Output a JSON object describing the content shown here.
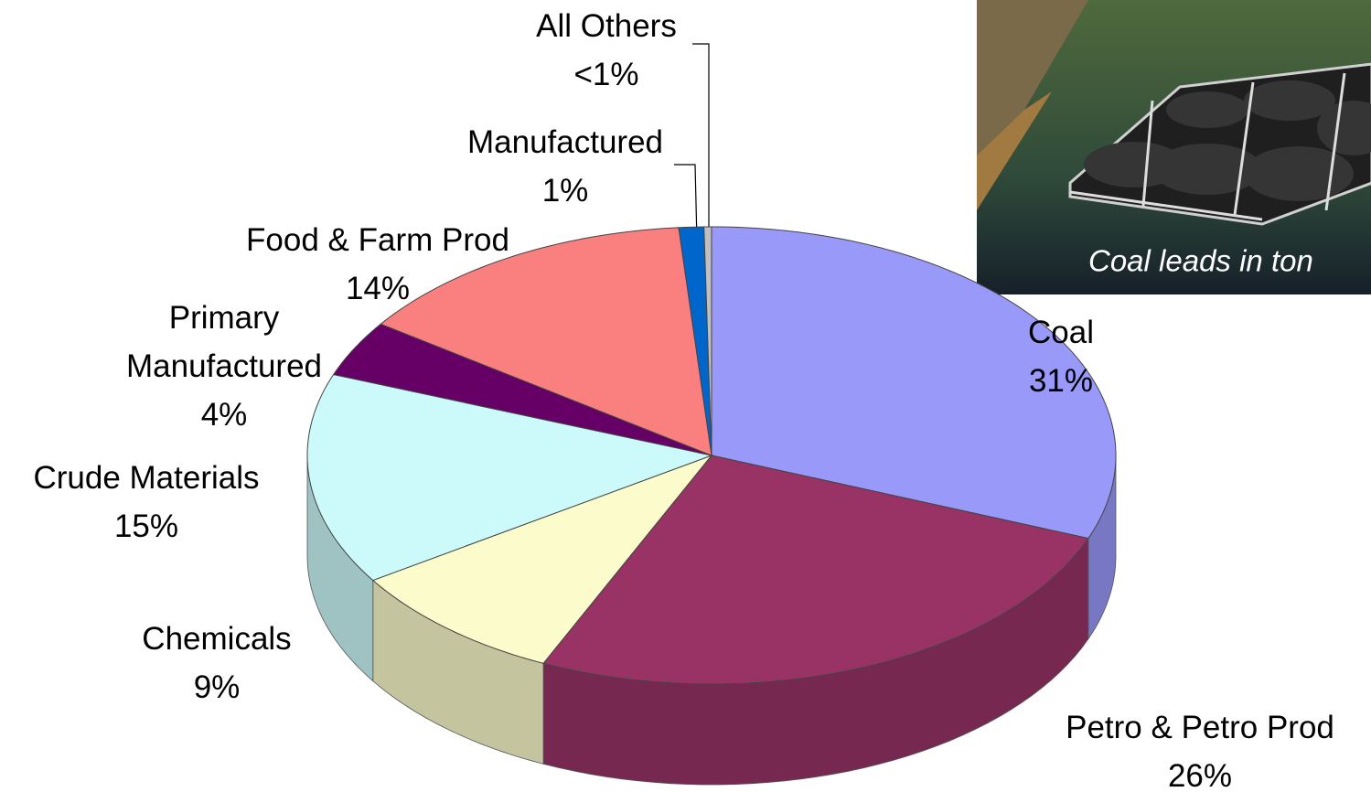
{
  "chart_data": {
    "type": "pie3d",
    "categories": [
      "Coal",
      "Petro & Petro Prod",
      "Chemicals",
      "Crude Materials",
      "Primary Manufactured",
      "Food & Farm Prod",
      "Manufactured",
      "All Others"
    ],
    "values": [
      31,
      26,
      9,
      15,
      4,
      14,
      1,
      0.3
    ],
    "value_labels": [
      "31%",
      "26%",
      "9%",
      "15%",
      "4%",
      "14%",
      "1%",
      "<1%"
    ],
    "colors": [
      "#9999fa",
      "#993366",
      "#fbfbcc",
      "#ccfafa",
      "#660066",
      "#fa8080",
      "#0066cc",
      "#c0c0c0"
    ]
  },
  "photo_caption": "Coal leads in ton"
}
